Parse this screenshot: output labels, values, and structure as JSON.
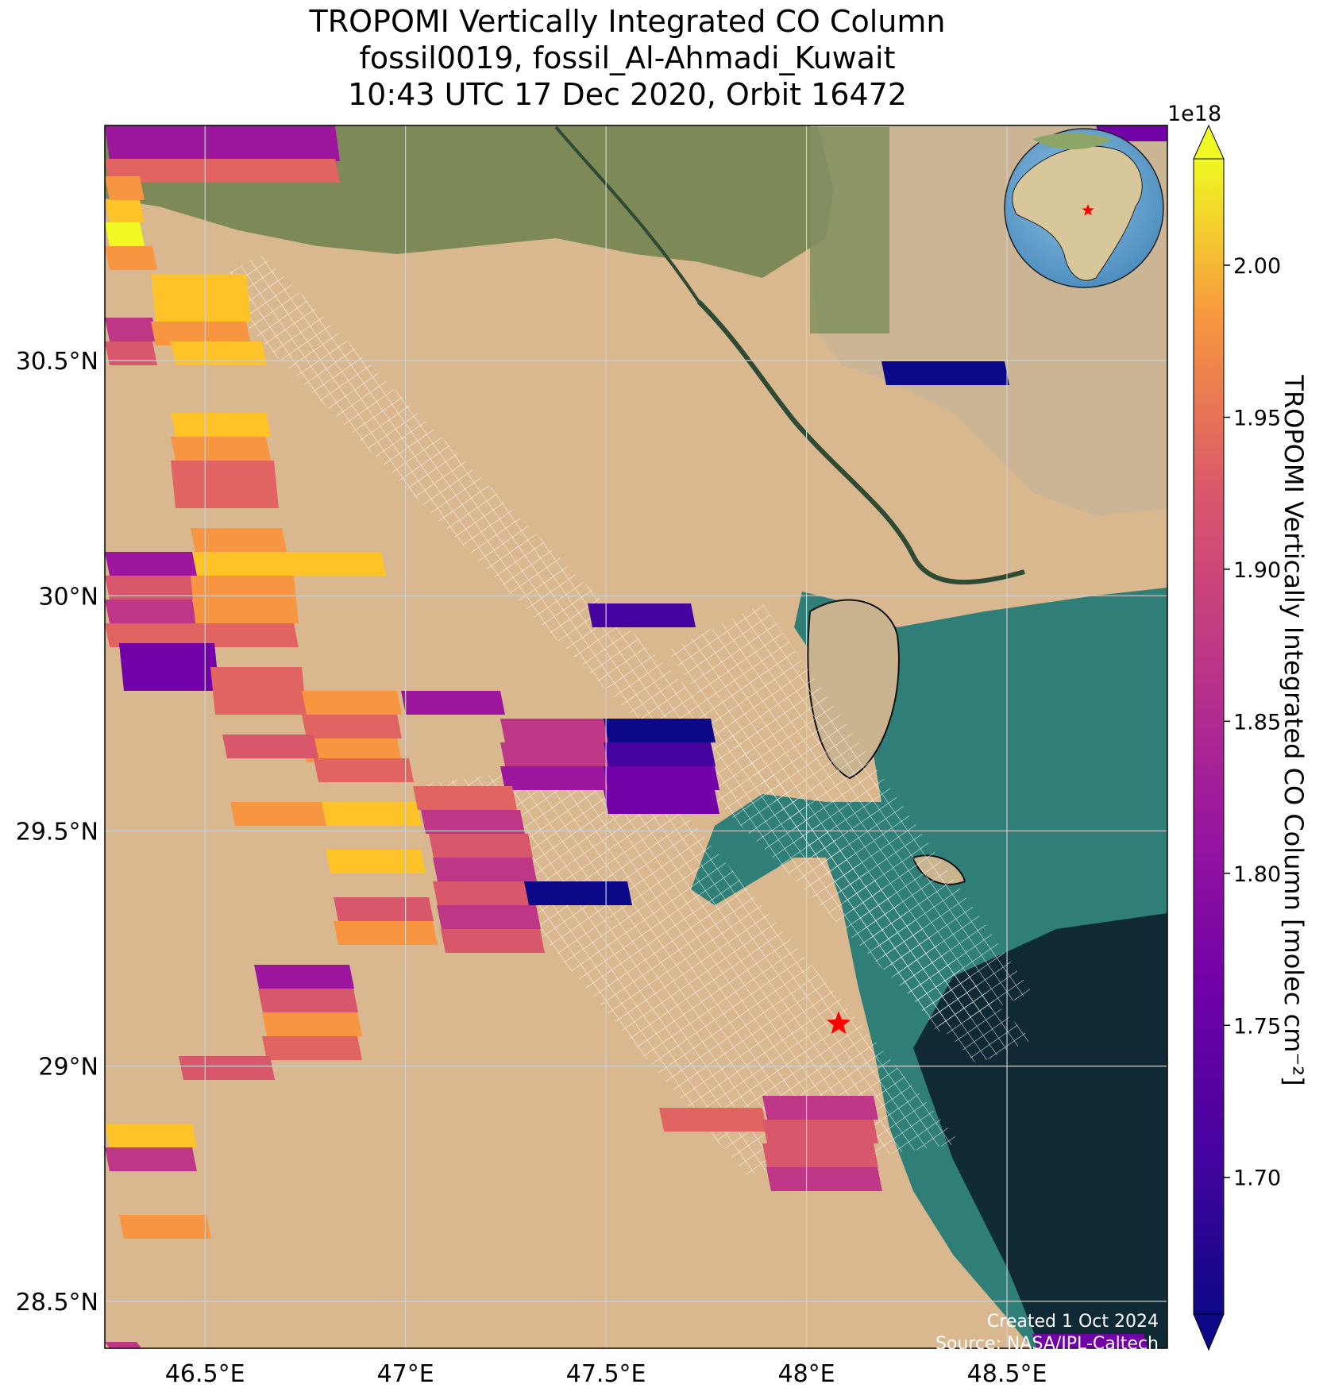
{
  "title": {
    "line1": "TROPOMI Vertically Integrated CO Column",
    "line2": "fossil0019, fossil_Al-Ahmadi_Kuwait",
    "line3": "10:43 UTC 17 Dec 2020, Orbit 16472"
  },
  "map": {
    "lon_range": [
      46.25,
      48.9
    ],
    "lat_range": [
      28.4,
      31.0
    ],
    "lon_ticks": [
      {
        "value": 46.5,
        "label": "46.5°E"
      },
      {
        "value": 47.0,
        "label": "47°E"
      },
      {
        "value": 47.5,
        "label": "47.5°E"
      },
      {
        "value": 48.0,
        "label": "48°E"
      },
      {
        "value": 48.5,
        "label": "48.5°E"
      }
    ],
    "lat_ticks": [
      {
        "value": 30.5,
        "label": "30.5°N"
      },
      {
        "value": 30.0,
        "label": "30°N"
      },
      {
        "value": 29.5,
        "label": "29.5°N"
      },
      {
        "value": 29.0,
        "label": "29°N"
      },
      {
        "value": 28.5,
        "label": "28.5°N"
      }
    ],
    "site_marker": {
      "lon": 48.08,
      "lat": 29.09,
      "color": "#ff0000"
    },
    "colors": {
      "desert": "#d9b88f",
      "water": "#2f7f78",
      "deep_water": "#102a35",
      "vegetation": "#4a6b3a",
      "grid": "#cfcfcf"
    }
  },
  "colorbar": {
    "label": "TROPOMI Vertically Integrated CO Column [molec cm⁻²]",
    "multiplier": "1e18",
    "vmin": 1.655,
    "vmax": 2.035,
    "ticks": [
      {
        "value": 2.0,
        "label": "2.00"
      },
      {
        "value": 1.95,
        "label": "1.95"
      },
      {
        "value": 1.9,
        "label": "1.90"
      },
      {
        "value": 1.85,
        "label": "1.85"
      },
      {
        "value": 1.8,
        "label": "1.80"
      },
      {
        "value": 1.75,
        "label": "1.75"
      },
      {
        "value": 1.7,
        "label": "1.70"
      }
    ],
    "colormap": "plasma"
  },
  "credits": {
    "created": "Created 1 Oct 2024",
    "source": "Source: NASA/JPL-Caltech"
  }
}
